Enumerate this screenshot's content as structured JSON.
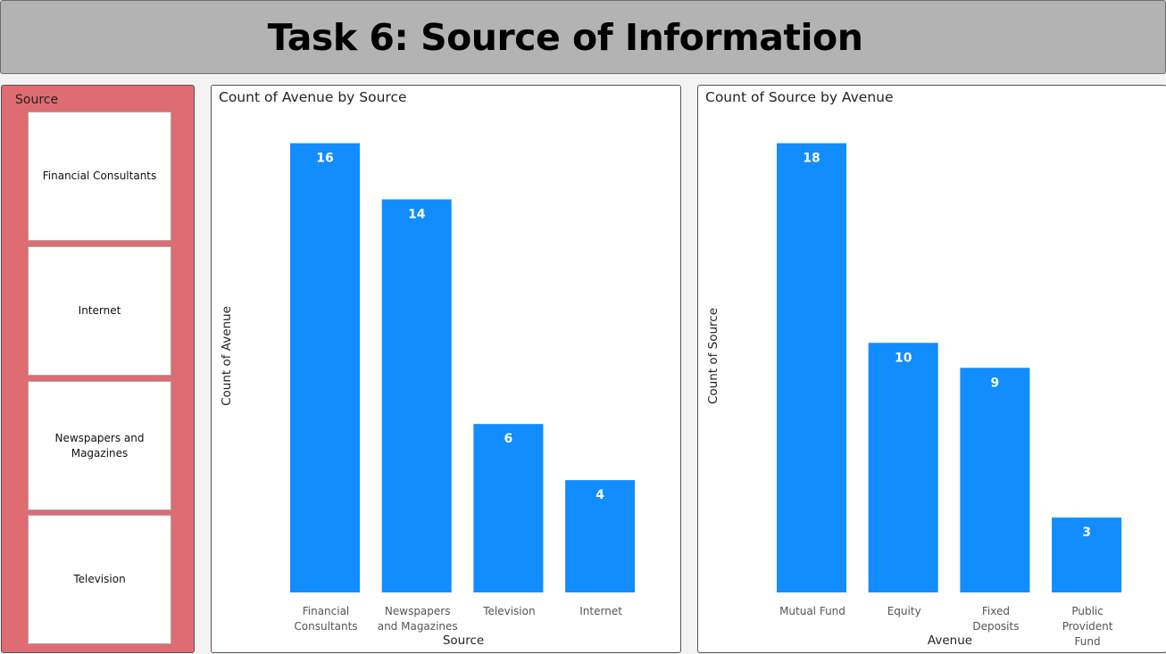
{
  "title": "Task 6: Source of Information",
  "slicer": {
    "title": "Source",
    "items": [
      "Financial Consultants",
      "Internet",
      "Newspapers and Magazines",
      "Television"
    ]
  },
  "chart_data": [
    {
      "type": "bar",
      "title": "Count of Avenue by Source",
      "xlabel": "Source",
      "ylabel": "Count of Avenue",
      "categories": [
        "Financial Consultants",
        "Newspapers and Magazines",
        "Television",
        "Internet"
      ],
      "values": [
        16,
        14,
        6,
        4
      ],
      "color": "#118dff"
    },
    {
      "type": "bar",
      "title": "Count of Source by Avenue",
      "xlabel": "Avenue",
      "ylabel": "Count of Source",
      "categories": [
        "Mutual Fund",
        "Equity",
        "Fixed Deposits",
        "Public Provident Fund"
      ],
      "values": [
        18,
        10,
        9,
        3
      ],
      "color": "#118dff"
    }
  ]
}
